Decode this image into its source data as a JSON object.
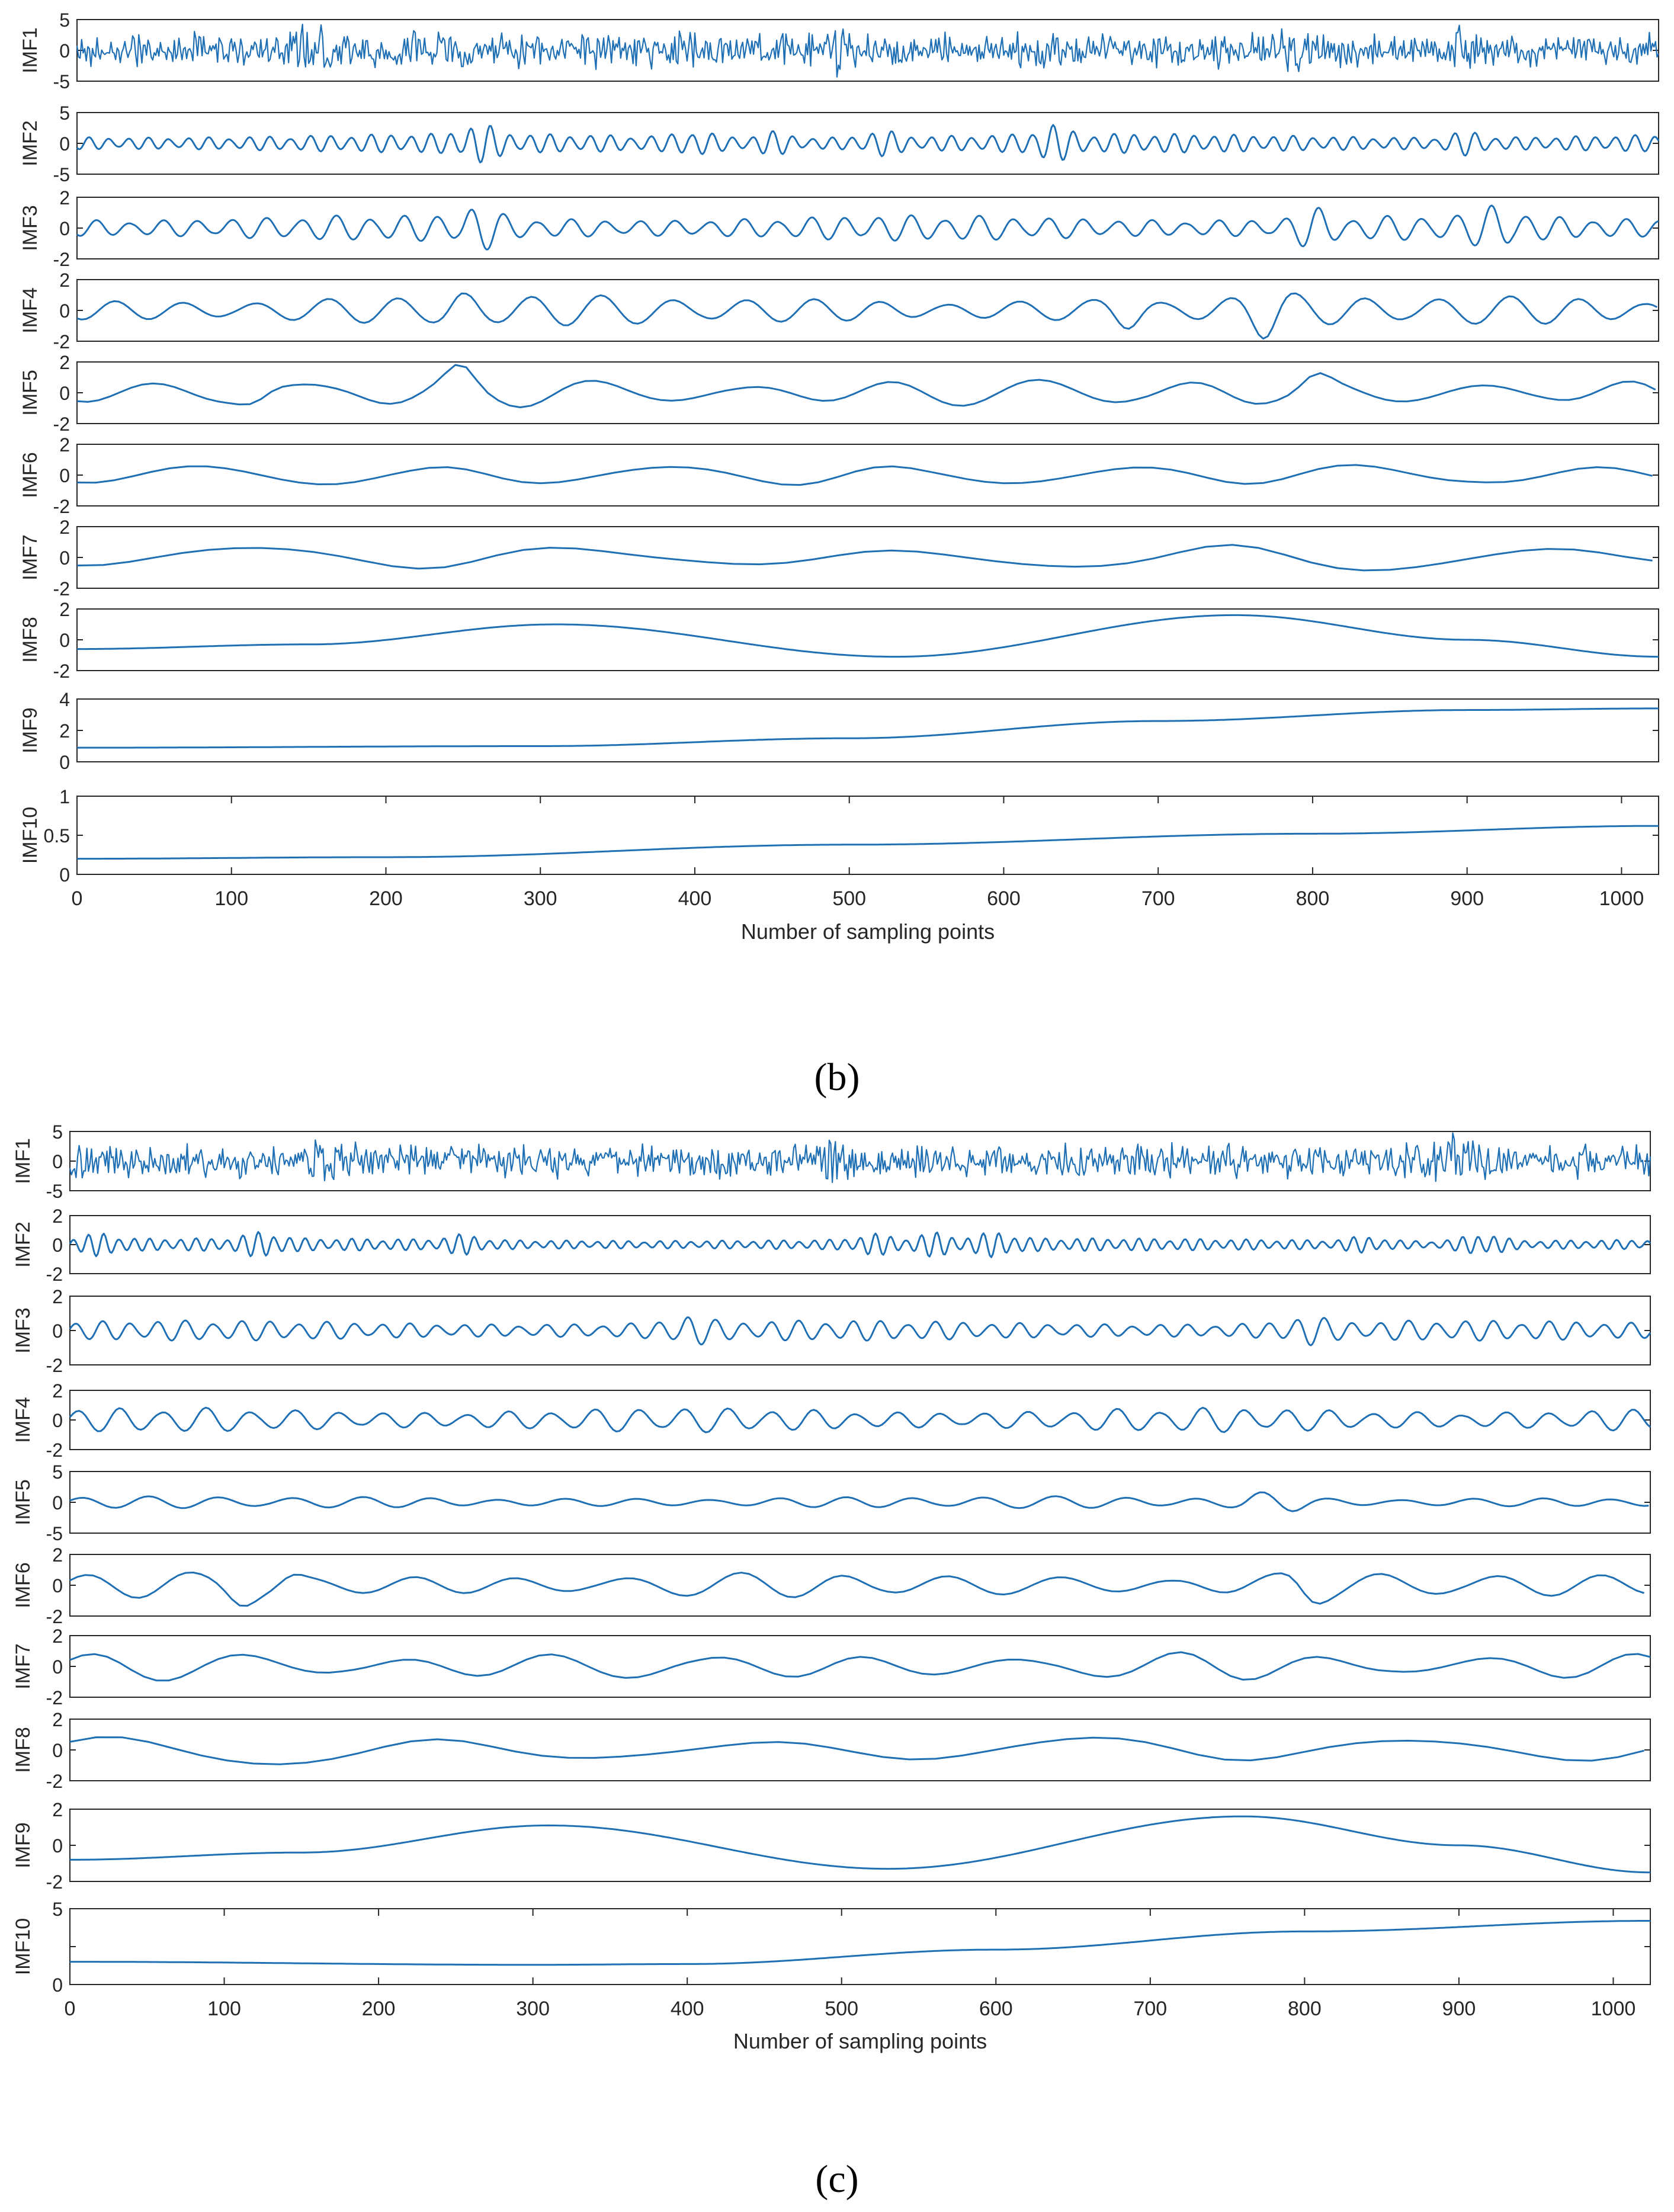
{
  "colors": {
    "line": "#1f6fb5",
    "axis": "#262626",
    "text": "#262626"
  },
  "chart_data": [
    {
      "type": "line",
      "subfigure_label": "(b)",
      "xlabel": "Number of sampling points",
      "xlim": [
        0,
        1024
      ],
      "xticks": [
        "0",
        "100",
        "200",
        "300",
        "400",
        "500",
        "600",
        "700",
        "800",
        "900",
        "1000"
      ],
      "panels": [
        {
          "name": "IMF1",
          "ylabel": "IMF1",
          "ylim": [
            -5,
            5
          ],
          "yticks": [
            "5",
            "0",
            "-5"
          ],
          "kind": "noise",
          "amplitude": 3.2,
          "bursts": [
            155,
            490,
            790,
            900
          ]
        },
        {
          "name": "IMF2",
          "ylabel": "IMF2",
          "ylim": [
            -5,
            5
          ],
          "yticks": [
            "5",
            "0",
            "-5"
          ],
          "kind": "osc",
          "period": 13,
          "amplitude": 1.6,
          "bursts": [
            260,
            400,
            450,
            520,
            630,
            900
          ]
        },
        {
          "name": "IMF3",
          "ylabel": "IMF3",
          "ylim": [
            -2,
            2
          ],
          "yticks": [
            "2",
            "0",
            "-2"
          ],
          "kind": "osc",
          "period": 22,
          "amplitude": 0.85,
          "bursts": [
            260,
            800,
            920
          ]
        },
        {
          "name": "IMF4",
          "ylabel": "IMF4",
          "ylim": [
            -2,
            2
          ],
          "yticks": [
            "2",
            "0",
            "-2"
          ],
          "kind": "osc",
          "period": 45,
          "amplitude": 1.0,
          "bursts": [
            250,
            680,
            770
          ]
        },
        {
          "name": "IMF5",
          "ylabel": "IMF5",
          "ylim": [
            -2,
            2
          ],
          "yticks": [
            "2",
            "0",
            "-2"
          ],
          "kind": "osc",
          "period": 95,
          "amplitude": 1.0,
          "bursts": [
            120,
            250,
            800
          ]
        },
        {
          "name": "IMF6",
          "ylabel": "IMF6",
          "ylim": [
            -2,
            2
          ],
          "yticks": [
            "2",
            "0",
            "-2"
          ],
          "kind": "osc",
          "period": 150,
          "amplitude": 0.85,
          "bursts": []
        },
        {
          "name": "IMF7",
          "ylabel": "IMF7",
          "ylim": [
            -2,
            2
          ],
          "yticks": [
            "2",
            "0",
            "-2"
          ],
          "kind": "osc",
          "period": 210,
          "amplitude": 0.9,
          "bursts": []
        },
        {
          "name": "IMF8",
          "ylabel": "IMF8",
          "ylim": [
            -2,
            2
          ],
          "yticks": [
            "2",
            "0",
            "-2"
          ],
          "kind": "curve",
          "x": [
            0,
            150,
            310,
            530,
            750,
            900,
            1024
          ],
          "y": [
            -0.6,
            -0.3,
            1.0,
            -1.1,
            1.6,
            0.0,
            -1.1
          ]
        },
        {
          "name": "IMF9",
          "ylabel": "IMF9",
          "ylim": [
            0,
            4
          ],
          "yticks": [
            "4",
            "2",
            "0"
          ],
          "kind": "curve",
          "x": [
            0,
            300,
            500,
            700,
            900,
            1024
          ],
          "y": [
            0.9,
            1.0,
            1.5,
            2.6,
            3.3,
            3.4
          ]
        },
        {
          "name": "IMF10",
          "ylabel": "IMF10",
          "ylim": [
            0,
            1
          ],
          "yticks": [
            "1",
            "0.5",
            "0"
          ],
          "kind": "curve",
          "x": [
            0,
            200,
            500,
            800,
            1024
          ],
          "y": [
            0.2,
            0.22,
            0.38,
            0.52,
            0.62
          ]
        }
      ]
    },
    {
      "type": "line",
      "subfigure_label": "(c)",
      "xlabel": "Number of sampling points",
      "xlim": [
        0,
        1024
      ],
      "xticks": [
        "0",
        "100",
        "200",
        "300",
        "400",
        "500",
        "600",
        "700",
        "800",
        "900",
        "1000"
      ],
      "panels": [
        {
          "name": "IMF1",
          "ylabel": "IMF1",
          "ylim": [
            -5,
            5
          ],
          "yticks": [
            "5",
            "0",
            "-5"
          ],
          "kind": "noise",
          "amplitude": 3.2,
          "bursts": [
            160,
            500,
            900
          ]
        },
        {
          "name": "IMF2",
          "ylabel": "IMF2",
          "ylim": [
            -2,
            2
          ],
          "yticks": [
            "2",
            "0",
            "-2"
          ],
          "kind": "osc",
          "period": 10,
          "amplitude": 0.45,
          "bursts": [
            20,
            125,
            255,
            520,
            560,
            600,
            840,
            910,
            920
          ]
        },
        {
          "name": "IMF3",
          "ylabel": "IMF3",
          "ylim": [
            -2,
            2
          ],
          "yticks": [
            "2",
            "0",
            "-2"
          ],
          "kind": "osc",
          "period": 18,
          "amplitude": 0.6,
          "bursts": [
            400,
            800
          ]
        },
        {
          "name": "IMF4",
          "ylabel": "IMF4",
          "ylim": [
            -2,
            2
          ],
          "yticks": [
            "2",
            "0",
            "-2"
          ],
          "kind": "osc",
          "period": 28,
          "amplitude": 0.85,
          "bursts": []
        },
        {
          "name": "IMF5",
          "ylabel": "IMF5",
          "ylim": [
            -5,
            5
          ],
          "yticks": [
            "5",
            "0",
            "-5"
          ],
          "kind": "osc",
          "period": 45,
          "amplitude": 1.0,
          "bursts": [
            770,
            790
          ]
        },
        {
          "name": "IMF6",
          "ylabel": "IMF6",
          "ylim": [
            -2,
            2
          ],
          "yticks": [
            "2",
            "0",
            "-2"
          ],
          "kind": "osc",
          "period": 70,
          "amplitude": 0.85,
          "bursts": [
            110,
            140,
            800
          ]
        },
        {
          "name": "IMF7",
          "ylabel": "IMF7",
          "ylim": [
            -2,
            2
          ],
          "yticks": [
            "2",
            "0",
            "-2"
          ],
          "kind": "osc",
          "period": 100,
          "amplitude": 0.95,
          "bursts": []
        },
        {
          "name": "IMF8",
          "ylabel": "IMF8",
          "ylim": [
            -2,
            2
          ],
          "yticks": [
            "2",
            "0",
            "-2"
          ],
          "kind": "osc",
          "period": 210,
          "amplitude": 1.0,
          "bursts": []
        },
        {
          "name": "IMF9",
          "ylabel": "IMF9",
          "ylim": [
            -2,
            2
          ],
          "yticks": [
            "2",
            "0",
            "-2"
          ],
          "kind": "curve",
          "x": [
            0,
            150,
            310,
            530,
            760,
            900,
            1024
          ],
          "y": [
            -0.8,
            -0.4,
            1.1,
            -1.3,
            1.6,
            0.0,
            -1.5
          ]
        },
        {
          "name": "IMF10",
          "ylabel": "IMF10",
          "ylim": [
            0,
            5
          ],
          "yticks": [
            "5",
            "",
            "0"
          ],
          "kind": "curve",
          "x": [
            0,
            300,
            400,
            600,
            800,
            1024
          ],
          "y": [
            1.5,
            1.3,
            1.35,
            2.3,
            3.5,
            4.2
          ]
        }
      ]
    }
  ]
}
